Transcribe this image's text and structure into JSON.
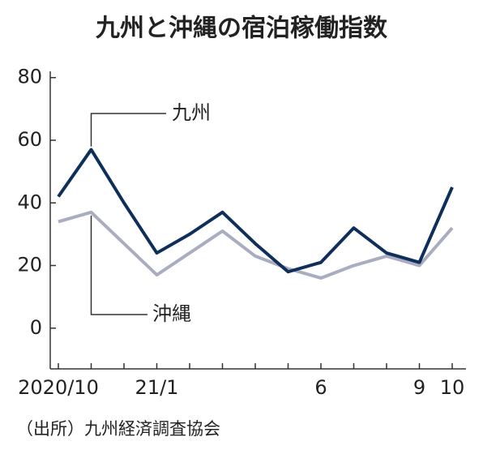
{
  "chart_data": {
    "type": "line",
    "title": "九州と沖縄の宿泊稼働指数",
    "categories": [
      "2020/10",
      null,
      null,
      "21/1",
      null,
      null,
      null,
      null,
      "6",
      null,
      null,
      "9",
      "10"
    ],
    "series": [
      {
        "name": "九州",
        "color": "#0d2f5a",
        "values": [
          42,
          57,
          40,
          24,
          30,
          37,
          27,
          18,
          21,
          32,
          24,
          21,
          45
        ]
      },
      {
        "name": "沖縄",
        "color": "#a9adbf",
        "values": [
          34,
          37,
          27,
          17,
          24,
          31,
          23,
          19,
          16,
          20,
          23,
          20,
          32
        ]
      }
    ],
    "ylim": [
      -13,
      82
    ],
    "yticks": [
      0,
      20,
      40,
      60,
      80
    ],
    "source": "（出所）九州経済調査協会"
  }
}
